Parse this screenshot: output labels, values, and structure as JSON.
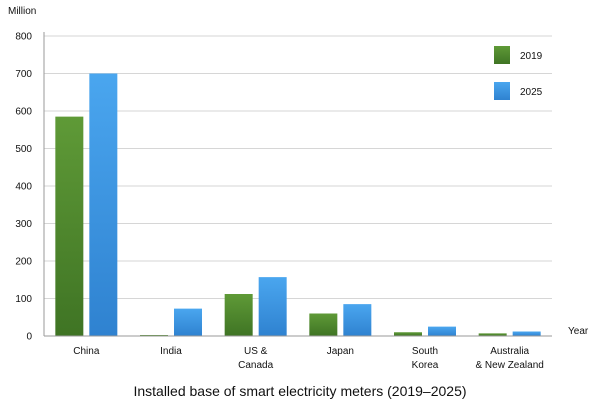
{
  "chart_data": {
    "type": "bar",
    "title": "Installed base of smart electricity meters (2019–2025)",
    "ylabel": "Million",
    "xlabel": "Year",
    "ylim": [
      0,
      800
    ],
    "yticks": [
      0,
      100,
      200,
      300,
      400,
      500,
      600,
      700,
      800
    ],
    "categories": [
      [
        "China"
      ],
      [
        "India"
      ],
      [
        "US &",
        "Canada"
      ],
      [
        "Japan"
      ],
      [
        "South",
        "Korea"
      ],
      [
        "Australia",
        "& New Zealand"
      ]
    ],
    "series": [
      {
        "name": "2019",
        "color": "#4e8a2e",
        "values": [
          585,
          2,
          112,
          60,
          10,
          7
        ]
      },
      {
        "name": "2025",
        "color": "#3d97e0",
        "values": [
          700,
          73,
          157,
          85,
          25,
          12
        ]
      }
    ],
    "grid": true,
    "legend_position": "top-right"
  }
}
